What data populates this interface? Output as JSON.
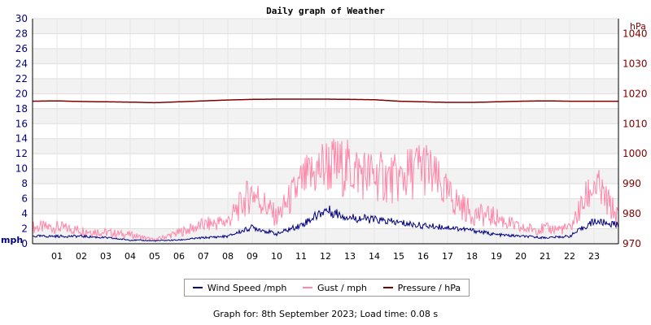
{
  "chart_data": {
    "type": "line",
    "title": "Daily graph of Weather",
    "left_axis": {
      "unit": "mph",
      "ylim": [
        0,
        30
      ],
      "ticks": [
        0,
        2,
        4,
        6,
        8,
        10,
        12,
        14,
        16,
        18,
        20,
        22,
        24,
        26,
        28,
        30
      ]
    },
    "right_axis": {
      "unit": "hPa",
      "ylim": [
        970,
        1045
      ],
      "ticks": [
        970,
        980,
        990,
        1000,
        1010,
        1020,
        1030,
        1040
      ]
    },
    "x_tick_labels": [
      "01",
      "02",
      "03",
      "04",
      "05",
      "06",
      "07",
      "08",
      "09",
      "10",
      "11",
      "12",
      "13",
      "14",
      "15",
      "16",
      "17",
      "18",
      "19",
      "20",
      "21",
      "22",
      "23"
    ],
    "grid": "horizontal bands",
    "legend_position": "bottom",
    "series": [
      {
        "name": "Wind Speed /mph",
        "color": "#000080",
        "axis": "left",
        "hours": [
          0,
          1,
          2,
          3,
          4,
          5,
          6,
          7,
          8,
          9,
          10,
          11,
          12,
          13,
          14,
          15,
          16,
          17,
          18,
          19,
          20,
          21,
          22,
          23,
          24
        ],
        "values": [
          1.0,
          1.0,
          1.0,
          0.8,
          0.5,
          0.4,
          0.5,
          0.8,
          1.0,
          2.2,
          1.3,
          2.5,
          4.5,
          3.5,
          3.2,
          2.8,
          2.4,
          2.2,
          1.8,
          1.2,
          1.0,
          0.8,
          1.0,
          3.0,
          2.5
        ]
      },
      {
        "name": "Gust / mph",
        "color": "#FF88AA",
        "axis": "left",
        "hours": [
          0,
          1,
          2,
          3,
          4,
          5,
          6,
          7,
          8,
          9,
          10,
          11,
          12,
          13,
          14,
          15,
          16,
          17,
          18,
          19,
          20,
          21,
          22,
          23,
          24
        ],
        "values": [
          2.2,
          2.2,
          1.8,
          1.5,
          1.2,
          0.5,
          1.5,
          2.5,
          3.0,
          7.0,
          3.5,
          8.0,
          10.5,
          10.0,
          9.0,
          8.5,
          10.5,
          6.5,
          4.0,
          3.5,
          2.0,
          2.0,
          2.0,
          8.0,
          3.5
        ]
      },
      {
        "name": "Pressure / hPa",
        "color": "#800000",
        "axis": "right",
        "hours": [
          0,
          1,
          2,
          3,
          4,
          5,
          6,
          7,
          8,
          9,
          10,
          11,
          12,
          13,
          14,
          15,
          16,
          17,
          18,
          19,
          20,
          21,
          22,
          23,
          24
        ],
        "values": [
          1017.5,
          1017.6,
          1017.4,
          1017.3,
          1017.2,
          1017.0,
          1017.3,
          1017.6,
          1017.9,
          1018.1,
          1018.2,
          1018.2,
          1018.2,
          1018.1,
          1018.0,
          1017.5,
          1017.3,
          1017.1,
          1017.1,
          1017.3,
          1017.5,
          1017.6,
          1017.5,
          1017.5,
          1017.5
        ]
      }
    ]
  },
  "footer": {
    "text": "Graph for: 8th September 2023; Load time: 0.08 s"
  }
}
